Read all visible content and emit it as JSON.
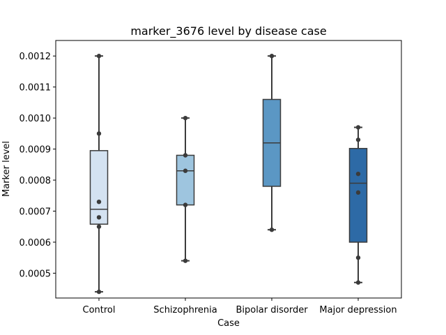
{
  "chart_data": {
    "type": "box",
    "title": "marker_3676 level by disease case",
    "xlabel": "Case",
    "ylabel": "Marker level",
    "categories": [
      "Control",
      "Schizophrenia",
      "Bipolar disorder",
      "Major depression"
    ],
    "ylim": [
      0.00042,
      0.00125
    ],
    "yticks": [
      0.0005,
      0.0006,
      0.0007,
      0.0008,
      0.0009,
      0.001,
      0.0011,
      0.0012
    ],
    "ytick_labels": [
      "0.0005",
      "0.0006",
      "0.0007",
      "0.0008",
      "0.0009",
      "0.0010",
      "0.0011",
      "0.0012"
    ],
    "grid": false,
    "boxes": [
      {
        "category": "Control",
        "whisker_low": 0.00044,
        "q1": 0.000658,
        "median": 0.000706,
        "q3": 0.000895,
        "whisker_high": 0.0012,
        "color": "#d4e2f1",
        "points": [
          0.0012,
          0.00095,
          0.00073,
          0.00068,
          0.00065,
          0.00044
        ]
      },
      {
        "category": "Schizophrenia",
        "whisker_low": 0.00054,
        "q1": 0.00072,
        "median": 0.00083,
        "q3": 0.00088,
        "whisker_high": 0.001,
        "color": "#9ec5df",
        "points": [
          0.001,
          0.00088,
          0.00083,
          0.00072,
          0.00054
        ]
      },
      {
        "category": "Bipolar disorder",
        "whisker_low": 0.00064,
        "q1": 0.00078,
        "median": 0.00092,
        "q3": 0.00106,
        "whisker_high": 0.0012,
        "color": "#5b97c4",
        "points": [
          0.0012,
          0.00064
        ]
      },
      {
        "category": "Major depression",
        "whisker_low": 0.00047,
        "q1": 0.0006,
        "median": 0.00079,
        "q3": 0.000902,
        "whisker_high": 0.00097,
        "color": "#2d6aa6",
        "points": [
          0.00097,
          0.00093,
          0.00082,
          0.00076,
          0.00055,
          0.00047
        ]
      }
    ],
    "colors": {
      "box_edge": "#3b3b3b",
      "point": "#3b3b3b",
      "axis": "#000000"
    }
  }
}
